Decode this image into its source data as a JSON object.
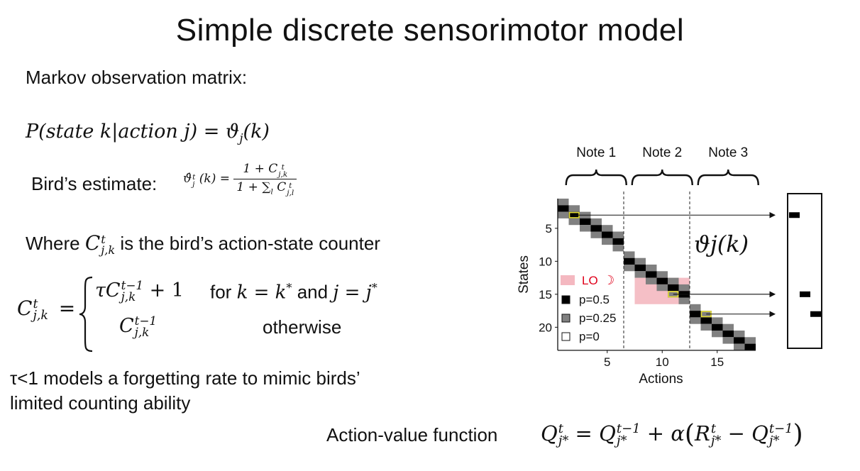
{
  "slide": {
    "title": "Simple discrete sensorimotor model"
  },
  "left": {
    "markov_label": "Markov observation matrix:",
    "prob_eq": {
      "lhs": "P(state k|action j)",
      "equals": " = ",
      "rhs": "ϑ",
      "rhs_sub": "j",
      "rhs_arg": "(k)"
    },
    "estimate_label": "Bird’s estimate:",
    "estimate_eq": {
      "hat_theta": "ϑ̂",
      "sup": "t",
      "sub": "j",
      "arg": "(k) =",
      "numerator": "1 + C",
      "num_sup": "t",
      "num_sub": "j,k",
      "denominator": "1 + ∑",
      "den_sum_sub": "l",
      "den_c": " C",
      "den_sup": "t",
      "den_sub": "j,l"
    },
    "where_prefix": "Where ",
    "where_c": "C",
    "where_sup": "t",
    "where_sub": "j,k",
    "where_suffix": " is the bird’s action-state counter",
    "counter_eq": {
      "lhs_c": "C",
      "lhs_sup": "t",
      "lhs_sub": "j,k",
      "equals": "=",
      "case1_expr": "τC",
      "case1_sup": "t−1",
      "case1_sub": "j,k",
      "case1_tail": " + 1",
      "case1_cond_prefix": "for ",
      "case1_cond_k": "k = k",
      "case1_star": "*",
      "case1_and": " and ",
      "case1_cond_j": "j = j",
      "case1_star2": "*",
      "case2_expr": "C",
      "case2_sup": "t−1",
      "case2_sub": "j,k",
      "case2_cond": "otherwise"
    },
    "tau_note_line1": "τ<1 models a forgetting rate to mimic birds’",
    "tau_note_line2": "limited counting ability"
  },
  "bottom": {
    "label": "Action-value function",
    "q": "Q",
    "q_sup": "t",
    "q_sub": "j*",
    "eq": " = ",
    "q2": "Q",
    "q2_sup": "t−1",
    "q2_sub": "j*",
    "plus_alpha": " + α",
    "r": "R",
    "r_sup": "t",
    "r_sub": "j*",
    "minus": " − ",
    "q3": "Q",
    "q3_sup": "t−1",
    "q3_sub": "j*"
  },
  "chart_data": {
    "type": "heatmap",
    "title": "ϑj(k)",
    "xlabel": "Actions",
    "ylabel": "States",
    "xticks": [
      5,
      10,
      15
    ],
    "yticks": [
      5,
      10,
      15,
      20
    ],
    "xlim": [
      0.5,
      18.5
    ],
    "ylim": [
      0.5,
      23.5
    ],
    "notes": [
      {
        "label": "Note 1",
        "actions": [
          1,
          6
        ]
      },
      {
        "label": "Note 2",
        "actions": [
          7,
          12
        ]
      },
      {
        "label": "Note 3",
        "actions": [
          13,
          18
        ]
      }
    ],
    "note_boundaries": [
      6.5,
      12.5
    ],
    "cells": [
      {
        "a": 1,
        "s": 1,
        "p": 0.25
      },
      {
        "a": 1,
        "s": 2,
        "p": 0.5
      },
      {
        "a": 1,
        "s": 3,
        "p": 0.25
      },
      {
        "a": 2,
        "s": 2,
        "p": 0.25
      },
      {
        "a": 2,
        "s": 3,
        "p": 0.5
      },
      {
        "a": 2,
        "s": 4,
        "p": 0.25
      },
      {
        "a": 3,
        "s": 3,
        "p": 0.25
      },
      {
        "a": 3,
        "s": 4,
        "p": 0.5
      },
      {
        "a": 3,
        "s": 5,
        "p": 0.25
      },
      {
        "a": 4,
        "s": 4,
        "p": 0.25
      },
      {
        "a": 4,
        "s": 5,
        "p": 0.5
      },
      {
        "a": 4,
        "s": 6,
        "p": 0.25
      },
      {
        "a": 5,
        "s": 5,
        "p": 0.25
      },
      {
        "a": 5,
        "s": 6,
        "p": 0.5
      },
      {
        "a": 5,
        "s": 7,
        "p": 0.25
      },
      {
        "a": 6,
        "s": 6,
        "p": 0.25
      },
      {
        "a": 6,
        "s": 7,
        "p": 0.5
      },
      {
        "a": 6,
        "s": 8,
        "p": 0.25
      },
      {
        "a": 7,
        "s": 9,
        "p": 0.25
      },
      {
        "a": 7,
        "s": 10,
        "p": 0.5
      },
      {
        "a": 7,
        "s": 11,
        "p": 0.25
      },
      {
        "a": 8,
        "s": 10,
        "p": 0.25
      },
      {
        "a": 8,
        "s": 11,
        "p": 0.5
      },
      {
        "a": 8,
        "s": 12,
        "p": 0.25
      },
      {
        "a": 9,
        "s": 11,
        "p": 0.25
      },
      {
        "a": 9,
        "s": 12,
        "p": 0.5
      },
      {
        "a": 9,
        "s": 13,
        "p": 0.25
      },
      {
        "a": 10,
        "s": 12,
        "p": 0.25
      },
      {
        "a": 10,
        "s": 13,
        "p": 0.5
      },
      {
        "a": 10,
        "s": 14,
        "p": 0.25
      },
      {
        "a": 11,
        "s": 13,
        "p": 0.25
      },
      {
        "a": 11,
        "s": 14,
        "p": 0.5
      },
      {
        "a": 11,
        "s": 15,
        "p": 0.25
      },
      {
        "a": 12,
        "s": 14,
        "p": 0.25
      },
      {
        "a": 12,
        "s": 15,
        "p": 0.5
      },
      {
        "a": 12,
        "s": 16,
        "p": 0.25
      },
      {
        "a": 13,
        "s": 17,
        "p": 0.25
      },
      {
        "a": 13,
        "s": 18,
        "p": 0.5
      },
      {
        "a": 13,
        "s": 19,
        "p": 0.25
      },
      {
        "a": 14,
        "s": 18,
        "p": 0.25
      },
      {
        "a": 14,
        "s": 19,
        "p": 0.5
      },
      {
        "a": 14,
        "s": 20,
        "p": 0.25
      },
      {
        "a": 15,
        "s": 19,
        "p": 0.25
      },
      {
        "a": 15,
        "s": 20,
        "p": 0.5
      },
      {
        "a": 15,
        "s": 21,
        "p": 0.25
      },
      {
        "a": 16,
        "s": 20,
        "p": 0.25
      },
      {
        "a": 16,
        "s": 21,
        "p": 0.5
      },
      {
        "a": 16,
        "s": 22,
        "p": 0.25
      },
      {
        "a": 17,
        "s": 21,
        "p": 0.25
      },
      {
        "a": 17,
        "s": 22,
        "p": 0.5
      },
      {
        "a": 17,
        "s": 23,
        "p": 0.25
      },
      {
        "a": 18,
        "s": 22,
        "p": 0.25
      },
      {
        "a": 18,
        "s": 23,
        "p": 0.5
      }
    ],
    "highlighted_cells": [
      {
        "a": 2,
        "s": 3
      },
      {
        "a": 11,
        "s": 15
      },
      {
        "a": 14,
        "s": 18
      }
    ],
    "lo_region": {
      "actions": [
        7.5,
        12.5
      ],
      "states": [
        12.5,
        16.5
      ]
    },
    "arrows": [
      {
        "state": 3,
        "to_column": 1
      },
      {
        "state": 15,
        "to_column": 2
      },
      {
        "state": 18,
        "to_column": 3
      }
    ],
    "output_vector_marks": [
      {
        "column": 1,
        "state": 3
      },
      {
        "column": 2,
        "state": 15
      },
      {
        "column": 3,
        "state": 18
      }
    ],
    "legend": [
      {
        "label": "LO",
        "kind": "lo",
        "color": "#f4b8c0",
        "moon": "☽"
      },
      {
        "label": "p=0.5",
        "kind": "p",
        "color": "#000000"
      },
      {
        "label": "p=0.25",
        "kind": "p",
        "color": "#808080"
      },
      {
        "label": "p=0",
        "kind": "p",
        "color": "#ffffff"
      }
    ],
    "colors": {
      "p05": "#000000",
      "p025": "#808080",
      "lo": "#f4b8c0",
      "highlight": "#e4dc33",
      "moon": "#e0001a"
    }
  }
}
